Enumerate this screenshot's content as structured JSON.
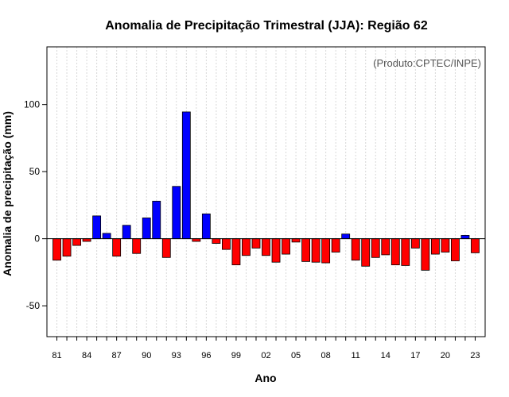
{
  "chart_data": {
    "type": "bar",
    "title": "Anomalia de Precipitação Trimestral (JJA): Região 62",
    "xlabel": "Ano",
    "ylabel": "Anomalia de precipitação (mm)",
    "annotation": "(Produto:CPTEC/INPE)",
    "ylim": [
      -73,
      143
    ],
    "yticks": [
      -50,
      0,
      50,
      100
    ],
    "x_tick_labels": [
      "81",
      "84",
      "87",
      "90",
      "93",
      "96",
      "99",
      "02",
      "05",
      "08",
      "11",
      "14",
      "17",
      "20",
      "23"
    ],
    "years": [
      1981,
      1982,
      1983,
      1984,
      1985,
      1986,
      1987,
      1988,
      1989,
      1990,
      1991,
      1992,
      1993,
      1994,
      1995,
      1996,
      1997,
      1998,
      1999,
      2000,
      2001,
      2002,
      2003,
      2004,
      2005,
      2006,
      2007,
      2008,
      2009,
      2010,
      2011,
      2012,
      2013,
      2014,
      2015,
      2016,
      2017,
      2018,
      2019,
      2020,
      2021,
      2022,
      2023
    ],
    "values": [
      -16,
      -13,
      -5,
      -2,
      17,
      4,
      -13,
      10,
      -11,
      15.5,
      28,
      -14,
      39,
      94.5,
      -2,
      18.5,
      -3.5,
      -8,
      -19.5,
      -12.5,
      -7,
      -12.5,
      -17.5,
      -11.5,
      -2.5,
      -17,
      -17.5,
      -18,
      -10,
      3.5,
      -16,
      -20.5,
      -14,
      -12,
      -19.5,
      -20,
      -7,
      -23.5,
      -11.5,
      -10,
      -16.5,
      2.5,
      -10.5
    ],
    "positive_color": "#0000FF",
    "negative_color": "#FF0000",
    "grid": "vertical dotted",
    "legend": "none"
  }
}
